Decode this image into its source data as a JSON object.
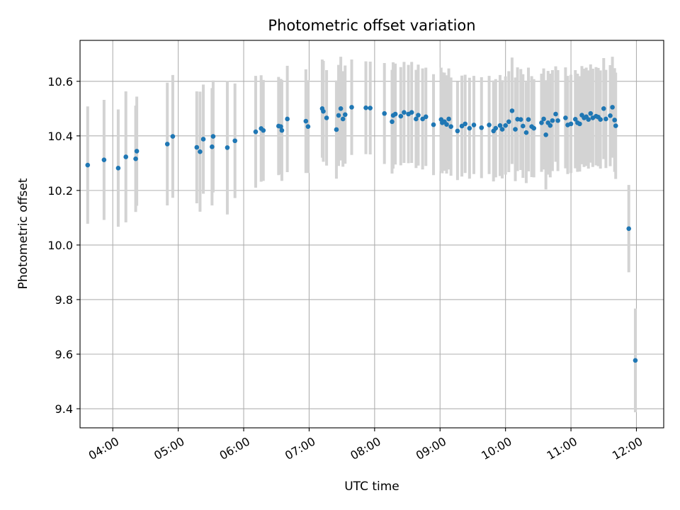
{
  "chart_data": {
    "type": "scatter",
    "title": "Photometric offset variation",
    "xlabel": "UTC time",
    "ylabel": "Photometric offset",
    "x_unit": "hours UTC",
    "xlim": [
      "03:30",
      "12:25"
    ],
    "ylim": [
      9.33,
      10.75
    ],
    "x_ticks": [
      "04:00",
      "05:00",
      "06:00",
      "07:00",
      "08:00",
      "09:00",
      "10:00",
      "11:00",
      "12:00"
    ],
    "y_ticks": [
      "9.4",
      "9.6",
      "9.8",
      "10.0",
      "10.2",
      "10.4",
      "10.6"
    ],
    "grid": true,
    "colors": {
      "points": "#1f77b4",
      "errorbars": "#d3d3d3",
      "grid": "#b0b0b0"
    },
    "series": [
      {
        "points": [
          [
            "03:37",
            10.293,
            0.215
          ],
          [
            "03:52",
            10.312,
            0.22
          ],
          [
            "04:05",
            10.282,
            0.215
          ],
          [
            "04:12",
            10.323,
            0.24
          ],
          [
            "04:21",
            10.316,
            0.195
          ],
          [
            "04:22",
            10.344,
            0.2
          ],
          [
            "04:50",
            10.37,
            0.225
          ],
          [
            "04:55",
            10.398,
            0.225
          ],
          [
            "05:17",
            10.358,
            0.205
          ],
          [
            "05:20",
            10.342,
            0.22
          ],
          [
            "05:23",
            10.388,
            0.2
          ],
          [
            "05:31",
            10.36,
            0.215
          ],
          [
            "05:32",
            10.398,
            0.205
          ],
          [
            "05:45",
            10.357,
            0.245
          ],
          [
            "05:52",
            10.382,
            0.21
          ],
          [
            "06:11",
            10.415,
            0.205
          ],
          [
            "06:16",
            10.427,
            0.195
          ],
          [
            "06:18",
            10.42,
            0.185
          ],
          [
            "06:32",
            10.436,
            0.18
          ],
          [
            "06:34",
            10.434,
            0.175
          ],
          [
            "06:35",
            10.42,
            0.185
          ],
          [
            "06:40",
            10.462,
            0.195
          ],
          [
            "06:57",
            10.454,
            0.19
          ],
          [
            "06:59",
            10.434,
            0.17
          ],
          [
            "07:12",
            10.5,
            0.18
          ],
          [
            "07:13",
            10.49,
            0.185
          ],
          [
            "07:16",
            10.466,
            0.175
          ],
          [
            "07:25",
            10.423,
            0.18
          ],
          [
            "07:27",
            10.475,
            0.185
          ],
          [
            "07:29",
            10.5,
            0.19
          ],
          [
            "07:31",
            10.462,
            0.175
          ],
          [
            "07:33",
            10.478,
            0.18
          ],
          [
            "07:39",
            10.505,
            0.175
          ],
          [
            "07:52",
            10.503,
            0.17
          ],
          [
            "07:56",
            10.502,
            0.17
          ],
          [
            "08:09",
            10.482,
            0.185
          ],
          [
            "08:16",
            10.452,
            0.19
          ],
          [
            "08:17",
            10.475,
            0.195
          ],
          [
            "08:19",
            10.48,
            0.185
          ],
          [
            "08:24",
            10.472,
            0.18
          ],
          [
            "08:27",
            10.486,
            0.185
          ],
          [
            "08:31",
            10.48,
            0.18
          ],
          [
            "08:34",
            10.486,
            0.185
          ],
          [
            "08:38",
            10.462,
            0.18
          ],
          [
            "08:40",
            10.476,
            0.185
          ],
          [
            "08:44",
            10.462,
            0.185
          ],
          [
            "08:47",
            10.47,
            0.18
          ],
          [
            "08:54",
            10.441,
            0.185
          ],
          [
            "09:01",
            10.46,
            0.19
          ],
          [
            "09:02",
            10.448,
            0.185
          ],
          [
            "09:04",
            10.452,
            0.18
          ],
          [
            "09:06",
            10.442,
            0.18
          ],
          [
            "09:08",
            10.462,
            0.185
          ],
          [
            "09:10",
            10.434,
            0.18
          ],
          [
            "09:16",
            10.418,
            0.18
          ],
          [
            "09:20",
            10.436,
            0.185
          ],
          [
            "09:23",
            10.444,
            0.18
          ],
          [
            "09:27",
            10.428,
            0.185
          ],
          [
            "09:31",
            10.44,
            0.18
          ],
          [
            "09:38",
            10.43,
            0.185
          ],
          [
            "09:45",
            10.44,
            0.18
          ],
          [
            "09:49",
            10.418,
            0.185
          ],
          [
            "09:51",
            10.428,
            0.18
          ],
          [
            "09:55",
            10.438,
            0.185
          ],
          [
            "09:57",
            10.424,
            0.18
          ],
          [
            "10:00",
            10.438,
            0.18
          ],
          [
            "10:03",
            10.452,
            0.185
          ],
          [
            "10:06",
            10.492,
            0.195
          ],
          [
            "10:09",
            10.424,
            0.19
          ],
          [
            "10:11",
            10.461,
            0.19
          ],
          [
            "10:14",
            10.46,
            0.185
          ],
          [
            "10:16",
            10.436,
            0.19
          ],
          [
            "10:19",
            10.412,
            0.185
          ],
          [
            "10:21",
            10.46,
            0.19
          ],
          [
            "10:24",
            10.434,
            0.185
          ],
          [
            "10:26",
            10.428,
            0.18
          ],
          [
            "10:33",
            10.448,
            0.18
          ],
          [
            "10:35",
            10.462,
            0.185
          ],
          [
            "10:37",
            10.404,
            0.2
          ],
          [
            "10:39",
            10.448,
            0.19
          ],
          [
            "10:41",
            10.438,
            0.19
          ],
          [
            "10:43",
            10.456,
            0.185
          ],
          [
            "10:46",
            10.48,
            0.175
          ],
          [
            "10:48",
            10.456,
            0.185
          ],
          [
            "10:55",
            10.466,
            0.185
          ],
          [
            "10:57",
            10.44,
            0.18
          ],
          [
            "11:00",
            10.444,
            0.18
          ],
          [
            "11:04",
            10.461,
            0.18
          ],
          [
            "11:06",
            10.448,
            0.18
          ],
          [
            "11:08",
            10.444,
            0.175
          ],
          [
            "11:10",
            10.476,
            0.18
          ],
          [
            "11:12",
            10.466,
            0.18
          ],
          [
            "11:14",
            10.47,
            0.18
          ],
          [
            "11:16",
            10.46,
            0.18
          ],
          [
            "11:18",
            10.482,
            0.18
          ],
          [
            "11:20",
            10.466,
            0.18
          ],
          [
            "11:23",
            10.472,
            0.18
          ],
          [
            "11:25",
            10.469,
            0.18
          ],
          [
            "11:27",
            10.46,
            0.18
          ],
          [
            "11:30",
            10.5,
            0.185
          ],
          [
            "11:32",
            10.462,
            0.18
          ],
          [
            "11:36",
            10.474,
            0.185
          ],
          [
            "11:38",
            10.505,
            0.185
          ],
          [
            "11:40",
            10.458,
            0.19
          ],
          [
            "11:41",
            10.437,
            0.195
          ],
          [
            "11:53",
            10.06,
            0.16
          ],
          [
            "11:59",
            9.577,
            0.19
          ]
        ]
      }
    ]
  }
}
